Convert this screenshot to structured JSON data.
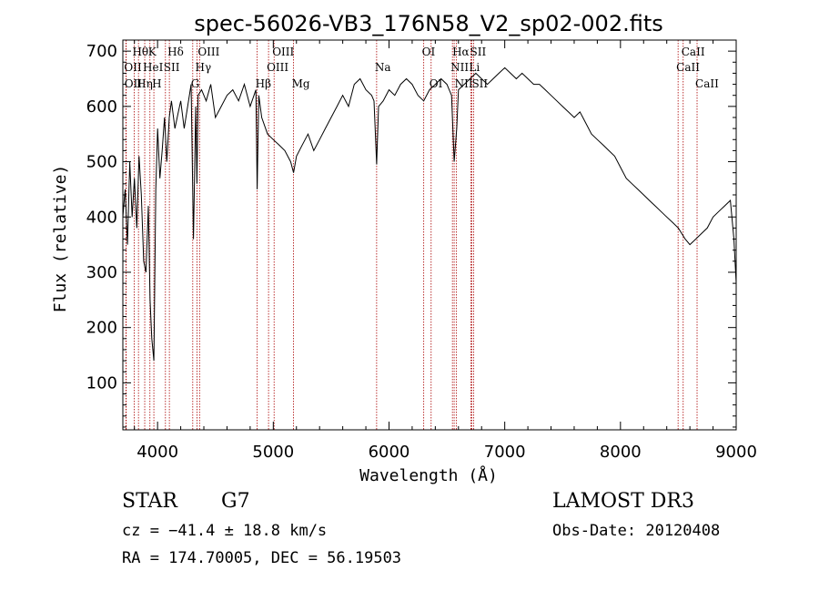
{
  "chart_data": {
    "type": "line",
    "title": "spec-56026-VB3_176N58_V2_sp02-002.fits",
    "xlabel": "Wavelength (Å)",
    "ylabel": "Flux (relative)",
    "xlim": [
      3700,
      9000
    ],
    "ylim": [
      15,
      720
    ],
    "x_ticks": [
      4000,
      5000,
      6000,
      7000,
      8000,
      9000
    ],
    "y_ticks": [
      100,
      200,
      300,
      400,
      500,
      600,
      700
    ],
    "series": [
      {
        "name": "flux",
        "x": [
          3700,
          3720,
          3740,
          3760,
          3780,
          3800,
          3820,
          3840,
          3860,
          3880,
          3900,
          3920,
          3935,
          3950,
          3968,
          3985,
          4000,
          4020,
          4040,
          4060,
          4080,
          4101,
          4120,
          4150,
          4180,
          4200,
          4230,
          4260,
          4290,
          4310,
          4330,
          4340,
          4350,
          4380,
          4420,
          4460,
          4500,
          4550,
          4600,
          4650,
          4700,
          4750,
          4800,
          4850,
          4861,
          4875,
          4900,
          4950,
          5000,
          5050,
          5100,
          5150,
          5175,
          5200,
          5250,
          5300,
          5350,
          5400,
          5450,
          5500,
          5550,
          5600,
          5650,
          5700,
          5750,
          5800,
          5850,
          5870,
          5893,
          5910,
          5950,
          6000,
          6050,
          6100,
          6150,
          6200,
          6250,
          6300,
          6350,
          6400,
          6450,
          6500,
          6540,
          6563,
          6585,
          6600,
          6650,
          6700,
          6750,
          6800,
          6850,
          6900,
          6950,
          7000,
          7050,
          7100,
          7150,
          7200,
          7250,
          7300,
          7350,
          7400,
          7450,
          7500,
          7550,
          7600,
          7650,
          7700,
          7750,
          7800,
          7850,
          7900,
          7950,
          8000,
          8050,
          8100,
          8150,
          8200,
          8250,
          8300,
          8350,
          8400,
          8450,
          8500,
          8530,
          8560,
          8600,
          8650,
          8700,
          8750,
          8800,
          8850,
          8900,
          8950,
          8980,
          9000
        ],
        "y": [
          400,
          450,
          350,
          500,
          400,
          470,
          380,
          510,
          440,
          320,
          300,
          420,
          250,
          180,
          140,
          450,
          560,
          470,
          520,
          580,
          500,
          580,
          610,
          560,
          590,
          610,
          560,
          600,
          640,
          360,
          600,
          460,
          620,
          630,
          610,
          640,
          580,
          600,
          620,
          630,
          610,
          640,
          600,
          630,
          450,
          620,
          580,
          550,
          540,
          530,
          520,
          500,
          480,
          510,
          530,
          550,
          520,
          540,
          560,
          580,
          600,
          620,
          600,
          640,
          650,
          630,
          620,
          610,
          495,
          600,
          610,
          630,
          620,
          640,
          650,
          640,
          620,
          610,
          630,
          640,
          650,
          640,
          620,
          500,
          560,
          630,
          640,
          650,
          660,
          650,
          640,
          650,
          660,
          670,
          660,
          650,
          660,
          650,
          640,
          640,
          630,
          620,
          610,
          600,
          590,
          580,
          590,
          570,
          550,
          540,
          530,
          520,
          510,
          490,
          470,
          460,
          450,
          440,
          430,
          420,
          410,
          400,
          390,
          380,
          370,
          360,
          350,
          360,
          370,
          380,
          400,
          410,
          420,
          430,
          360,
          280
        ]
      }
    ],
    "lines": [
      {
        "name": "H theta",
        "wavelength": 3798,
        "label": "Hθ",
        "row": 1
      },
      {
        "name": "O II",
        "wavelength": 3727,
        "label": "OII",
        "row": 2
      },
      {
        "name": "O II",
        "wavelength": 3729,
        "label": "OII",
        "row": 3
      },
      {
        "name": "H eta",
        "wavelength": 3835,
        "label": "Hη",
        "row": 3
      },
      {
        "name": "He I",
        "wavelength": 3889,
        "label": "HeI",
        "row": 2
      },
      {
        "name": "K",
        "wavelength": 3934,
        "label": "K",
        "row": 1
      },
      {
        "name": "H",
        "wavelength": 3968,
        "label": "H",
        "row": 3
      },
      {
        "name": "S II",
        "wavelength": 4068,
        "label": "SII",
        "row": 2
      },
      {
        "name": "H delta",
        "wavelength": 4102,
        "label": "Hδ",
        "row": 1
      },
      {
        "name": "G band",
        "wavelength": 4304,
        "label": "G",
        "row": 3
      },
      {
        "name": "H gamma",
        "wavelength": 4341,
        "label": "Hγ",
        "row": 2
      },
      {
        "name": "O III",
        "wavelength": 4363,
        "label": "OIII",
        "row": 1
      },
      {
        "name": "H beta",
        "wavelength": 4861,
        "label": "Hβ",
        "row": 3
      },
      {
        "name": "O III",
        "wavelength": 4959,
        "label": "OIII",
        "row": 2
      },
      {
        "name": "O III",
        "wavelength": 5007,
        "label": "OIII",
        "row": 1
      },
      {
        "name": "Mg",
        "wavelength": 5175,
        "label": "Mg",
        "row": 3
      },
      {
        "name": "Na",
        "wavelength": 5893,
        "label": "Na",
        "row": 2
      },
      {
        "name": "O I",
        "wavelength": 6300,
        "label": "OI",
        "row": 1
      },
      {
        "name": "O I",
        "wavelength": 6364,
        "label": "OI",
        "row": 3
      },
      {
        "name": "N II",
        "wavelength": 6548,
        "label": "NII",
        "row": 2
      },
      {
        "name": "H alpha",
        "wavelength": 6563,
        "label": "Hα",
        "row": 1
      },
      {
        "name": "N II",
        "wavelength": 6583,
        "label": "NII",
        "row": 3
      },
      {
        "name": "Li",
        "wavelength": 6707,
        "label": "Li",
        "row": 2
      },
      {
        "name": "S II",
        "wavelength": 6716,
        "label": "SII",
        "row": 1
      },
      {
        "name": "S II",
        "wavelength": 6731,
        "label": "SII",
        "row": 3
      },
      {
        "name": "Ca II",
        "wavelength": 8498,
        "label": "CaII",
        "row": 2
      },
      {
        "name": "Ca II",
        "wavelength": 8542,
        "label": "CaII",
        "row": 1
      },
      {
        "name": "Ca II",
        "wavelength": 8662,
        "label": "CaII",
        "row": 3
      }
    ],
    "grid": false,
    "legend": "none"
  },
  "info": {
    "class": "STAR",
    "subclass": "G7",
    "cz": "cz = −41.4 ± 18.8 km/s",
    "coords": "RA = 174.70005, DEC =  56.19503",
    "survey": "LAMOST DR3",
    "obs_date": "Obs-Date: 20120408"
  },
  "colors": {
    "line_marker": "#aa0000",
    "spectrum": "#000000",
    "axis": "#000000"
  }
}
